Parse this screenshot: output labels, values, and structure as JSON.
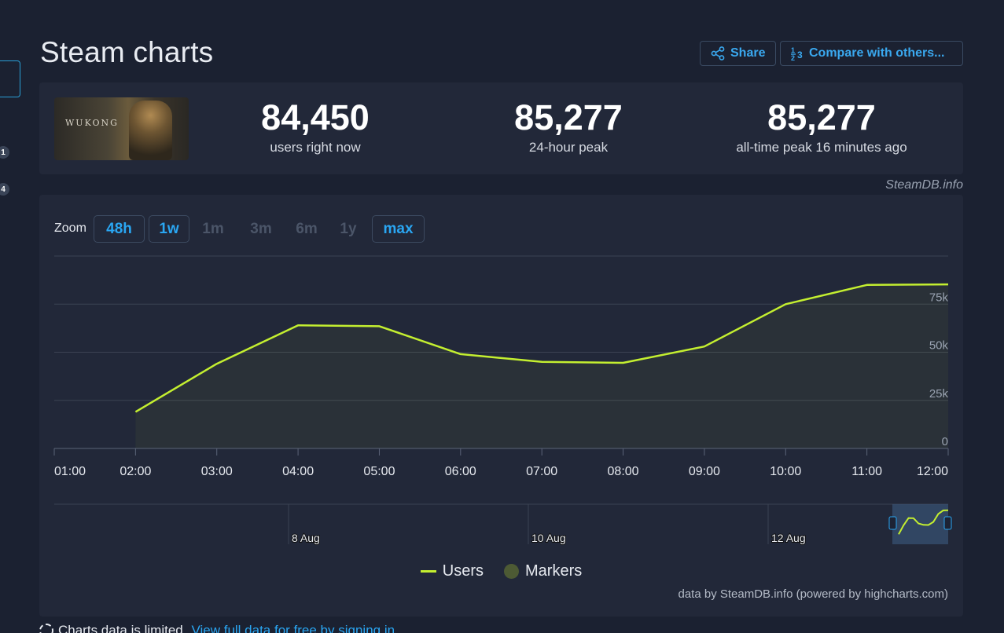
{
  "rail": {
    "badges": [
      "1",
      "4"
    ]
  },
  "page": {
    "title": "Steam charts"
  },
  "actions": {
    "share_label": "Share",
    "compare_label": "Compare with others..."
  },
  "game": {
    "logo_text": "WUKONG"
  },
  "stats": [
    {
      "value": "84,450",
      "label": "users right now"
    },
    {
      "value": "85,277",
      "label": "24-hour peak"
    },
    {
      "value": "85,277",
      "label": "all-time peak 16 minutes ago"
    }
  ],
  "credit_top": "SteamDB.info",
  "zoom": {
    "label": "Zoom",
    "options": [
      {
        "label": "48h",
        "state": "active"
      },
      {
        "label": "1w",
        "state": "active"
      },
      {
        "label": "1m",
        "state": "disabled"
      },
      {
        "label": "3m",
        "state": "disabled"
      },
      {
        "label": "6m",
        "state": "disabled"
      },
      {
        "label": "1y",
        "state": "disabled"
      },
      {
        "label": "max",
        "state": "active"
      }
    ]
  },
  "chart_data": {
    "type": "area",
    "x": [
      "01:00",
      "02:00",
      "03:00",
      "04:00",
      "05:00",
      "06:00",
      "07:00",
      "08:00",
      "09:00",
      "10:00",
      "11:00",
      "12:00"
    ],
    "series": [
      {
        "name": "Users",
        "values": [
          null,
          19000,
          44000,
          64000,
          63500,
          49000,
          45000,
          44500,
          53000,
          75000,
          85000,
          85277
        ],
        "color": "#c4ef30"
      }
    ],
    "y_ticks": [
      "0",
      "25k",
      "50k",
      "75k"
    ],
    "ylim": [
      0,
      100000
    ],
    "grid": true,
    "navigator_labels": [
      "8 Aug",
      "10 Aug",
      "12 Aug"
    ]
  },
  "legend": {
    "users_label": "Users",
    "markers_label": "Markers"
  },
  "credit_bottom": "data by SteamDB.info (powered by highcharts.com)",
  "notice": {
    "text": "Charts data is limited.",
    "link": "View full data for free by signing in"
  },
  "colors": {
    "accent": "#2aa6f2",
    "line": "#c4ef30",
    "panel": "#222839",
    "background": "#1b2131"
  }
}
